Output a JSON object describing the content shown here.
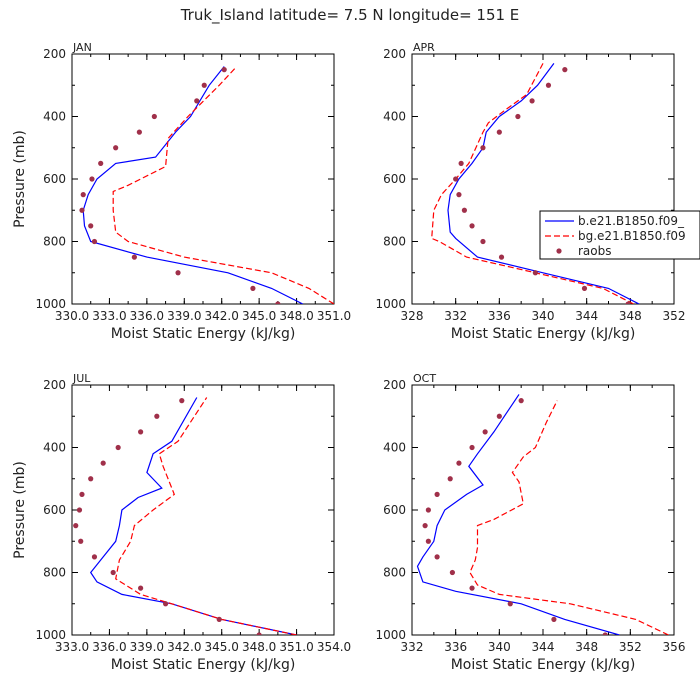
{
  "title": "Truk_Island  latitude= 7.5 N longitude= 151 E",
  "colors": {
    "model_b": "#0000ff",
    "model_bg": "#ff0000",
    "raobs": "#a0304a",
    "axis": "#000000"
  },
  "legend": {
    "b": "b.e21.B1850.f09_",
    "bg": "bg.e21.B1850.f09",
    "raobs": "raobs"
  },
  "chart_data": [
    {
      "type": "line",
      "panel": "JAN",
      "xlabel": "Moist Static Energy (kJ/kg)",
      "ylabel": "Pressure (mb)",
      "xlim": [
        330.0,
        351.0
      ],
      "ylim": [
        1000,
        200
      ],
      "x_ticks": [
        330.0,
        333.0,
        336.0,
        339.0,
        342.0,
        345.0,
        348.0,
        351.0
      ],
      "x_tick_labels": [
        "330.0",
        "333.0",
        "336.0",
        "339.0",
        "342.0",
        "345.0",
        "348.0",
        "351.0"
      ],
      "y_ticks": [
        200,
        400,
        600,
        800,
        1000
      ],
      "series": [
        {
          "name": "b.e21.B1850.f09_",
          "style": "solid",
          "color": "#0000ff",
          "points": [
            [
              348.5,
              1000
            ],
            [
              346,
              950
            ],
            [
              342.5,
              900
            ],
            [
              336,
              850
            ],
            [
              331.5,
              800
            ],
            [
              331,
              750
            ],
            [
              330.9,
              700
            ],
            [
              331.3,
              650
            ],
            [
              332,
              600
            ],
            [
              333.5,
              550
            ],
            [
              336.7,
              530
            ],
            [
              338.3,
              450
            ],
            [
              339.5,
              400
            ],
            [
              341,
              300
            ],
            [
              342.2,
              240
            ]
          ]
        },
        {
          "name": "bg.e21.B1850.f09",
          "style": "dashed",
          "color": "#ff0000",
          "points": [
            [
              351,
              1000
            ],
            [
              349,
              950
            ],
            [
              346,
              900
            ],
            [
              339,
              850
            ],
            [
              334.5,
              800
            ],
            [
              333.5,
              770
            ],
            [
              333.3,
              700
            ],
            [
              333.3,
              640
            ],
            [
              334.5,
              620
            ],
            [
              337.5,
              560
            ],
            [
              337.7,
              470
            ],
            [
              339.3,
              400
            ],
            [
              341.8,
              300
            ],
            [
              343.2,
              240
            ]
          ]
        },
        {
          "name": "raobs",
          "style": "dots",
          "color": "#a0304a",
          "points": [
            [
              346.5,
              1000
            ],
            [
              344.5,
              950
            ],
            [
              338.5,
              900
            ],
            [
              335,
              850
            ],
            [
              331.8,
              800
            ],
            [
              331.5,
              750
            ],
            [
              330.8,
              700
            ],
            [
              330.9,
              650
            ],
            [
              331.6,
              600
            ],
            [
              332.3,
              550
            ],
            [
              333.5,
              500
            ],
            [
              335.4,
              450
            ],
            [
              336.6,
              400
            ],
            [
              340,
              350
            ],
            [
              340.6,
              300
            ],
            [
              342.2,
              250
            ]
          ]
        }
      ]
    },
    {
      "type": "line",
      "panel": "APR",
      "xlabel": "Moist Static Energy (kJ/kg)",
      "ylabel": "",
      "xlim": [
        328,
        352
      ],
      "ylim": [
        1000,
        200
      ],
      "x_ticks": [
        328,
        332,
        336,
        340,
        344,
        348,
        352
      ],
      "x_tick_labels": [
        "328",
        "332",
        "336",
        "340",
        "344",
        "348",
        "352"
      ],
      "y_ticks": [
        200,
        400,
        600,
        800,
        1000
      ],
      "series": [
        {
          "name": "b.e21.B1850.f09_",
          "style": "solid",
          "color": "#0000ff",
          "points": [
            [
              348.8,
              1000
            ],
            [
              346,
              950
            ],
            [
              340,
              900
            ],
            [
              334,
              850
            ],
            [
              332,
              790
            ],
            [
              331.5,
              770
            ],
            [
              331.3,
              700
            ],
            [
              331.5,
              650
            ],
            [
              332.3,
              600
            ],
            [
              333.5,
              550
            ],
            [
              334.5,
              500
            ],
            [
              334.8,
              450
            ],
            [
              336,
              400
            ],
            [
              338,
              350
            ],
            [
              339.5,
              300
            ],
            [
              341,
              230
            ]
          ]
        },
        {
          "name": "bg.e21.B1850.f09",
          "style": "dashed",
          "color": "#ff0000",
          "points": [
            [
              348.3,
              1000
            ],
            [
              345.5,
              950
            ],
            [
              339.3,
              900
            ],
            [
              333,
              850
            ],
            [
              330.5,
              800
            ],
            [
              329.8,
              790
            ],
            [
              330,
              700
            ],
            [
              330.7,
              650
            ],
            [
              332,
              600
            ],
            [
              333.2,
              550
            ],
            [
              334.5,
              450
            ],
            [
              335,
              420
            ],
            [
              336.5,
              380
            ],
            [
              338.5,
              330
            ],
            [
              340,
              230
            ]
          ]
        },
        {
          "name": "raobs",
          "style": "dots",
          "color": "#a0304a",
          "points": [
            [
              347.8,
              1000
            ],
            [
              343.8,
              950
            ],
            [
              339.3,
              900
            ],
            [
              336.2,
              850
            ],
            [
              334.5,
              800
            ],
            [
              333.5,
              750
            ],
            [
              332.8,
              700
            ],
            [
              332.3,
              650
            ],
            [
              332,
              600
            ],
            [
              332.5,
              550
            ],
            [
              334.5,
              500
            ],
            [
              336,
              450
            ],
            [
              337.7,
              400
            ],
            [
              339,
              350
            ],
            [
              340.5,
              300
            ],
            [
              342,
              250
            ]
          ]
        }
      ]
    },
    {
      "type": "line",
      "panel": "JUL",
      "xlabel": "Moist Static Energy (kJ/kg)",
      "ylabel": "Pressure (mb)",
      "xlim": [
        333.0,
        354.0
      ],
      "ylim": [
        1000,
        200
      ],
      "x_ticks": [
        333.0,
        336.0,
        339.0,
        342.0,
        345.0,
        348.0,
        351.0,
        354.0
      ],
      "x_tick_labels": [
        "333.0",
        "336.0",
        "339.0",
        "342.0",
        "345.0",
        "348.0",
        "351.0",
        "354.0"
      ],
      "y_ticks": [
        200,
        400,
        600,
        800,
        1000
      ],
      "series": [
        {
          "name": "b.e21.B1850.f09_",
          "style": "solid",
          "color": "#0000ff",
          "points": [
            [
              351,
              1000
            ],
            [
              345,
              950
            ],
            [
              341,
              900
            ],
            [
              337,
              870
            ],
            [
              335,
              830
            ],
            [
              334.5,
              800
            ],
            [
              335.5,
              750
            ],
            [
              336.5,
              700
            ],
            [
              336.8,
              650
            ],
            [
              337,
              600
            ],
            [
              338.3,
              560
            ],
            [
              340.2,
              530
            ],
            [
              339,
              480
            ],
            [
              339.5,
              420
            ],
            [
              341,
              380
            ],
            [
              343,
              240
            ]
          ]
        },
        {
          "name": "bg.e21.B1850.f09",
          "style": "dashed",
          "color": "#ff0000",
          "points": [
            [
              351,
              1000
            ],
            [
              345,
              950
            ],
            [
              341,
              900
            ],
            [
              338.5,
              870
            ],
            [
              336.5,
              820
            ],
            [
              336.8,
              760
            ],
            [
              337.7,
              700
            ],
            [
              338,
              650
            ],
            [
              339.5,
              600
            ],
            [
              341.2,
              550
            ],
            [
              340.3,
              460
            ],
            [
              340,
              420
            ],
            [
              341.5,
              380
            ],
            [
              343.8,
              240
            ]
          ]
        },
        {
          "name": "raobs",
          "style": "dots",
          "color": "#a0304a",
          "points": [
            [
              348,
              1000
            ],
            [
              344.8,
              950
            ],
            [
              340.5,
              900
            ],
            [
              338.5,
              850
            ],
            [
              336.3,
              800
            ],
            [
              334.8,
              750
            ],
            [
              333.7,
              700
            ],
            [
              333.3,
              650
            ],
            [
              333.6,
              600
            ],
            [
              333.8,
              550
            ],
            [
              334.5,
              500
            ],
            [
              335.5,
              450
            ],
            [
              336.7,
              400
            ],
            [
              338.5,
              350
            ],
            [
              339.8,
              300
            ],
            [
              341.8,
              250
            ]
          ]
        }
      ]
    },
    {
      "type": "line",
      "panel": "OCT",
      "xlabel": "Moist Static Energy (kJ/kg)",
      "ylabel": "",
      "xlim": [
        332,
        356
      ],
      "ylim": [
        1000,
        200
      ],
      "x_ticks": [
        332,
        336,
        340,
        344,
        348,
        352,
        356
      ],
      "x_tick_labels": [
        "332",
        "336",
        "340",
        "344",
        "348",
        "352",
        "356"
      ],
      "y_ticks": [
        200,
        400,
        600,
        800,
        1000
      ],
      "series": [
        {
          "name": "b.e21.B1850.f09_",
          "style": "solid",
          "color": "#0000ff",
          "points": [
            [
              351,
              1000
            ],
            [
              346,
              950
            ],
            [
              342,
              900
            ],
            [
              336,
              860
            ],
            [
              333,
              830
            ],
            [
              332.5,
              780
            ],
            [
              333,
              750
            ],
            [
              334,
              700
            ],
            [
              334.3,
              650
            ],
            [
              335,
              600
            ],
            [
              337,
              550
            ],
            [
              338.5,
              520
            ],
            [
              337.2,
              460
            ],
            [
              338,
              420
            ],
            [
              339.5,
              350
            ],
            [
              341.8,
              230
            ]
          ]
        },
        {
          "name": "bg.e21.B1850.f09",
          "style": "dashed",
          "color": "#ff0000",
          "points": [
            [
              355.5,
              1000
            ],
            [
              352.5,
              950
            ],
            [
              346.5,
              900
            ],
            [
              340,
              870
            ],
            [
              338,
              840
            ],
            [
              337.3,
              800
            ],
            [
              337.8,
              760
            ],
            [
              338,
              720
            ],
            [
              338,
              660
            ],
            [
              338,
              650
            ],
            [
              339.5,
              630
            ],
            [
              342.2,
              580
            ],
            [
              341.8,
              510
            ],
            [
              341.2,
              480
            ],
            [
              342.2,
              430
            ],
            [
              343.3,
              400
            ],
            [
              344.3,
              320
            ],
            [
              345.3,
              250
            ]
          ]
        },
        {
          "name": "raobs",
          "style": "dots",
          "color": "#a0304a",
          "points": [
            [
              349.7,
              1000
            ],
            [
              345,
              950
            ],
            [
              341,
              900
            ],
            [
              337.5,
              850
            ],
            [
              335.7,
              800
            ],
            [
              334.3,
              750
            ],
            [
              333.5,
              700
            ],
            [
              333.2,
              650
            ],
            [
              333.5,
              600
            ],
            [
              334.3,
              550
            ],
            [
              335.5,
              500
            ],
            [
              336.3,
              450
            ],
            [
              337.5,
              400
            ],
            [
              338.7,
              350
            ],
            [
              340,
              300
            ],
            [
              342,
              250
            ]
          ]
        }
      ]
    }
  ]
}
